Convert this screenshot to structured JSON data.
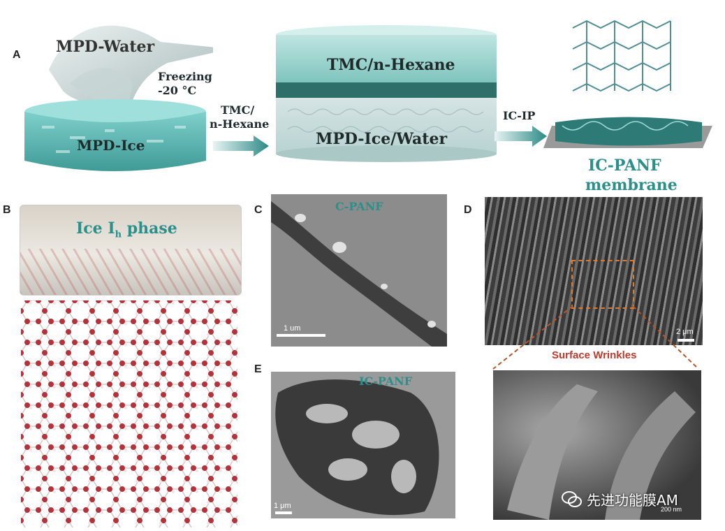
{
  "panels": {
    "a": {
      "letter": "A",
      "mpd_water": "MPD-Water",
      "freezing": "Freezing",
      "temperature": "-20 °C",
      "mpd_ice": "MPD-Ice",
      "reagent_line1": "TMC/",
      "reagent_line2": "n-Hexane",
      "tmc_hexane": "TMC/n-Hexane",
      "mpd_ice_water": "MPD-Ice/Water",
      "ic_ip": "IC-IP",
      "membrane_line1": "IC-PANF",
      "membrane_line2": "membrane"
    },
    "b": {
      "letter": "B",
      "phase_main": "Ice I",
      "phase_sub": "h",
      "phase_tail": " phase"
    },
    "c": {
      "letter": "C",
      "title": "C-PANF",
      "scale": "1 um"
    },
    "d": {
      "letter": "D",
      "scale": "2 μm",
      "callout": "Surface Wrinkles",
      "zoom_scale": "200 nm"
    },
    "e": {
      "letter": "E",
      "title": "IC-PANF",
      "scale": "1 μm"
    }
  },
  "watermark": {
    "text": "先进功能膜AM"
  },
  "colors": {
    "teal": "#5fb8b4",
    "dark_teal": "#2b6e6c",
    "orange_box": "#e07a2b",
    "callout": "#c0392b"
  }
}
